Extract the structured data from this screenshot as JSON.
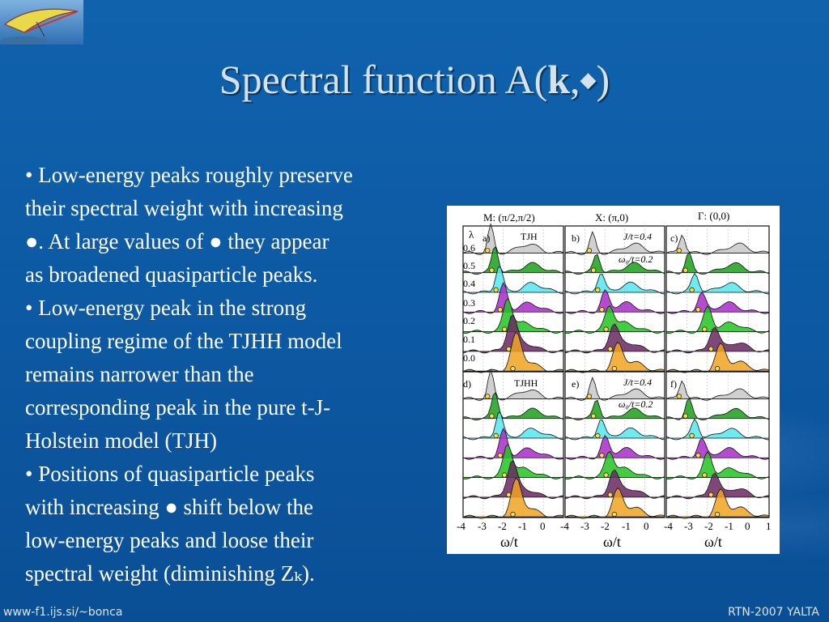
{
  "slide": {
    "title_prefix": "Spectral function A(",
    "title_bold": "k",
    "title_sep": ",",
    "title_symbol": "◆",
    "title_suffix": ")",
    "bullets": [
      [
        "• Low-energy peaks roughly preserve",
        "their spectral weight with increasing",
        "●. At large values of ● they appear",
        "as broadened quasiparticle peaks."
      ],
      [
        "• Low-energy peak in the strong",
        "coupling regime of the TJHH model",
        "remains narrower than the",
        "corresponding peak in the pure t-J-",
        "Holstein  model (TJH)"
      ],
      [
        "• Positions of quasiparticle peaks",
        "with increasing  ●   shift below the",
        "low-energy peaks and loose their",
        "spectral weight (diminishing Zₖ)."
      ]
    ],
    "footer_left": "www-f1.ijs.si/~bonca",
    "footer_right": "RTN-2007 YALTA"
  },
  "figure": {
    "column_headers": [
      "M: (π/2,π/2)",
      "X: (π,0)",
      "Γ: (0,0)"
    ],
    "panel_labels": [
      "a)",
      "b)",
      "c)",
      "d)",
      "e)",
      "f)"
    ],
    "model_labels": [
      "TJH",
      "TJHH"
    ],
    "param_J": "J/t=0.4",
    "param_w0": "ω₀/t=0.2",
    "lambda_symbol": "λ",
    "lambda_values": [
      "0.6",
      "0.5",
      "0.4",
      "0.3",
      "0.2",
      "0.1",
      "0.0"
    ],
    "x_ticks_first": [
      "-4",
      "-3",
      "-2",
      "-1",
      "0"
    ],
    "x_ticks_last": [
      "-4",
      "-3",
      "-2",
      "-1",
      "0",
      "1"
    ],
    "x_label": "ω/t",
    "curve_colors": [
      "#c8c8c8",
      "#1aa01a",
      "#55e6ee",
      "#a82bc8",
      "#22c422",
      "#6a2860",
      "#f0a520"
    ]
  }
}
